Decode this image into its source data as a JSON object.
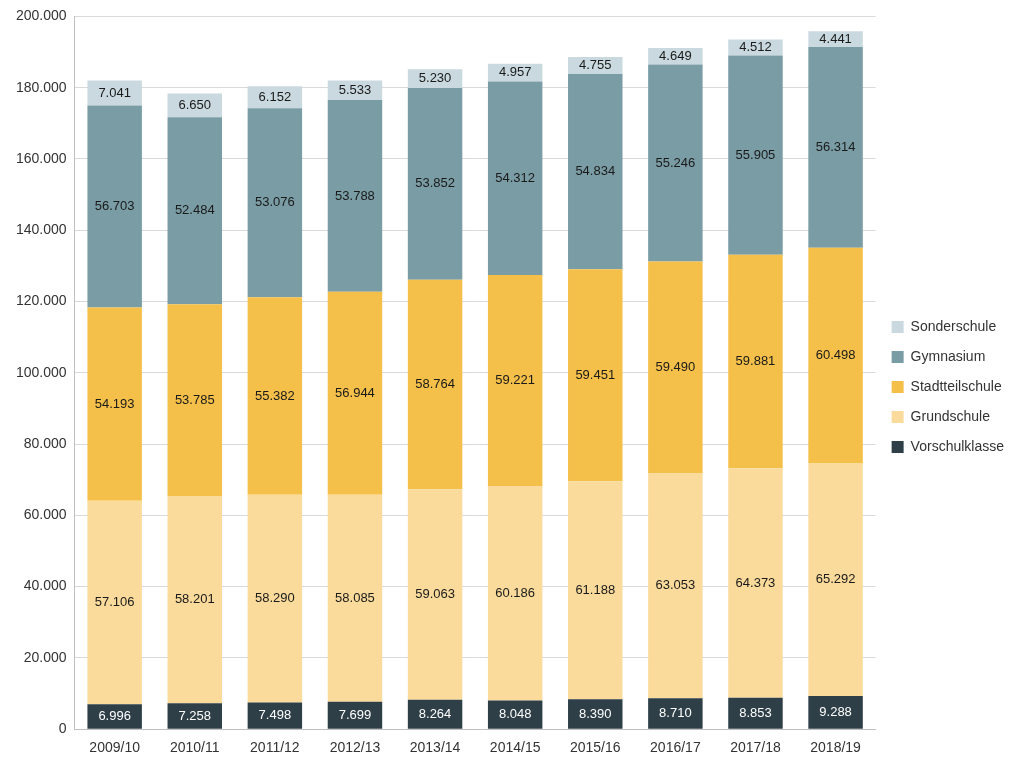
{
  "chart_data": {
    "type": "bar",
    "stacked": true,
    "grid": true,
    "legend": "right",
    "data_labels": true,
    "categories": [
      "2009/10",
      "2010/11",
      "2011/12",
      "2012/13",
      "2013/14",
      "2014/15",
      "2015/16",
      "2016/17",
      "2017/18",
      "2018/19"
    ],
    "ylim": [
      0,
      200000
    ],
    "yticks": [
      0,
      {
        "value": 20000,
        "label": "20.000"
      },
      {
        "value": 40000,
        "label": "40.000"
      },
      {
        "value": 60000,
        "label": "60.000"
      },
      {
        "value": 80000,
        "label": "80.000"
      },
      {
        "value": 100000,
        "label": "100.000"
      },
      {
        "value": 120000,
        "label": "120.000"
      },
      {
        "value": 140000,
        "label": "140.000"
      },
      {
        "value": 160000,
        "label": "160.000"
      },
      {
        "value": 180000,
        "label": "180.000"
      },
      {
        "value": 200000,
        "label": "200.000"
      }
    ],
    "series": [
      {
        "name": "Vorschulklasse",
        "color": "#2e3f47",
        "values": [
          6996,
          7258,
          7498,
          7699,
          8264,
          8048,
          8390,
          8710,
          8853,
          9288
        ],
        "value_labels": [
          "6.996",
          "7.258",
          "7.498",
          "7.699",
          "8.264",
          "8.048",
          "8.390",
          "8.710",
          "8.853",
          "9.288"
        ]
      },
      {
        "name": "Grundschule",
        "color": "#fadb9c",
        "values": [
          57106,
          58201,
          58290,
          58085,
          59063,
          60186,
          61188,
          63053,
          64373,
          65292
        ],
        "value_labels": [
          "57.106",
          "58.201",
          "58.290",
          "58.085",
          "59.063",
          "60.186",
          "61.188",
          "63.053",
          "64.373",
          "65.292"
        ]
      },
      {
        "name": "Stadtteilschule",
        "color": "#f5c04a",
        "values": [
          54193,
          53785,
          55382,
          56944,
          58764,
          59221,
          59451,
          59490,
          59881,
          60498
        ],
        "value_labels": [
          "54.193",
          "53.785",
          "55.382",
          "56.944",
          "58.764",
          "59.221",
          "59.451",
          "59.490",
          "59.881",
          "60.498"
        ]
      },
      {
        "name": "Gymnasium",
        "color": "#7a9ca5",
        "values": [
          56703,
          52484,
          53076,
          53788,
          53852,
          54312,
          54834,
          55246,
          55905,
          56314
        ],
        "value_labels": [
          "56.703",
          "52.484",
          "53.076",
          "53.788",
          "53.852",
          "54.312",
          "54.834",
          "55.246",
          "55.905",
          "56.314"
        ]
      },
      {
        "name": "Sonderschule",
        "color": "#c9d9df",
        "values": [
          7041,
          6650,
          6152,
          5533,
          5230,
          4957,
          4755,
          4649,
          4512,
          4441
        ],
        "value_labels": [
          "7.041",
          "6.650",
          "6.152",
          "5.533",
          "5.230",
          "4.957",
          "4.755",
          "4.649",
          "4.512",
          "4.441"
        ]
      }
    ]
  }
}
